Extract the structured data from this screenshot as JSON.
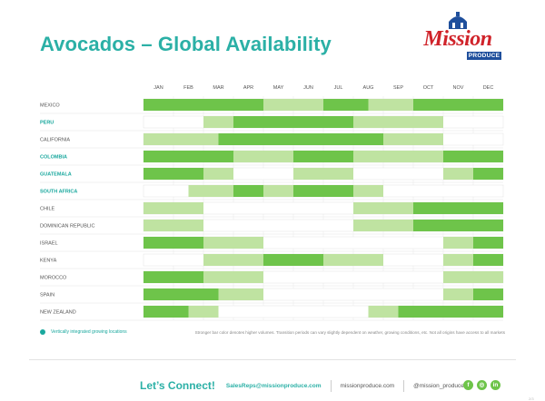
{
  "title": "Avocados – Global Availability",
  "logo": {
    "brand": "Mission",
    "sub": "PRODUCE"
  },
  "legend": {
    "label": "Vertically integrated growing locations"
  },
  "note": "Stronger bar color denotes higher volumes. Transition periods can vary slightly dependent on weather, growing conditions, etc. Not all origins have access to all markets",
  "footer": {
    "connect": "Let’s Connect!",
    "email": "SalesReps@missionproduce.com",
    "website": "missionproduce.com",
    "handle": "@mission_produce",
    "socials": [
      "f",
      "◎",
      "in"
    ]
  },
  "page_number": "2/3",
  "colors": {
    "teal": "#2bb0a6",
    "strong": "#6ec44a",
    "light": "#bfe3a1",
    "row_label": "#555555",
    "row_label_teal": "#1aa89e"
  },
  "chart_data": {
    "type": "table",
    "title": "Avocados – Global Availability",
    "months": [
      "JAN",
      "FEB",
      "MAR",
      "APR",
      "MAY",
      "JUN",
      "JUL",
      "AUG",
      "SEP",
      "OCT",
      "NOV",
      "DEC"
    ],
    "volume_scale": {
      "0": "none",
      "1": "lower volume (light)",
      "2": "higher volume (strong)"
    },
    "rows": [
      {
        "name": "MEXICO",
        "vertically_integrated": false,
        "segments": [
          [
            0,
            4,
            2
          ],
          [
            4,
            6,
            1
          ],
          [
            6,
            7.5,
            2
          ],
          [
            7.5,
            9,
            1
          ],
          [
            9,
            12,
            2
          ]
        ]
      },
      {
        "name": "PERU",
        "vertically_integrated": true,
        "segments": [
          [
            2,
            3,
            1
          ],
          [
            3,
            7,
            2
          ],
          [
            7,
            10,
            1
          ]
        ]
      },
      {
        "name": "CALIFORNIA",
        "vertically_integrated": false,
        "segments": [
          [
            0,
            2.5,
            1
          ],
          [
            2.5,
            8,
            2
          ],
          [
            8,
            10,
            1
          ]
        ]
      },
      {
        "name": "COLOMBIA",
        "vertically_integrated": true,
        "segments": [
          [
            0,
            3,
            2
          ],
          [
            3,
            5,
            1
          ],
          [
            5,
            7,
            2
          ],
          [
            7,
            10,
            1
          ],
          [
            10,
            12,
            2
          ]
        ]
      },
      {
        "name": "GUATEMALA",
        "vertically_integrated": true,
        "segments": [
          [
            0,
            2,
            2
          ],
          [
            2,
            3,
            1
          ],
          [
            5,
            7,
            1
          ],
          [
            10,
            11,
            1
          ],
          [
            11,
            12,
            2
          ]
        ]
      },
      {
        "name": "SOUTH AFRICA",
        "vertically_integrated": true,
        "segments": [
          [
            1.5,
            3,
            1
          ],
          [
            3,
            4,
            2
          ],
          [
            4,
            5,
            1
          ],
          [
            5,
            7,
            2
          ],
          [
            7,
            8,
            1
          ]
        ]
      },
      {
        "name": "CHILE",
        "vertically_integrated": false,
        "segments": [
          [
            0,
            2,
            1
          ],
          [
            7,
            9,
            1
          ],
          [
            9,
            12,
            2
          ]
        ]
      },
      {
        "name": "DOMINICAN REPUBLIC",
        "vertically_integrated": false,
        "segments": [
          [
            0,
            2,
            1
          ],
          [
            7,
            9,
            1
          ],
          [
            9,
            12,
            2
          ]
        ]
      },
      {
        "name": "ISRAEL",
        "vertically_integrated": false,
        "segments": [
          [
            0,
            2,
            2
          ],
          [
            2,
            4,
            1
          ],
          [
            10,
            11,
            1
          ],
          [
            11,
            12,
            2
          ]
        ]
      },
      {
        "name": "KENYA",
        "vertically_integrated": false,
        "segments": [
          [
            2,
            4,
            1
          ],
          [
            4,
            6,
            2
          ],
          [
            6,
            8,
            1
          ],
          [
            10,
            11,
            1
          ],
          [
            11,
            12,
            2
          ]
        ]
      },
      {
        "name": "MOROCCO",
        "vertically_integrated": false,
        "segments": [
          [
            0,
            2,
            2
          ],
          [
            2,
            4,
            1
          ],
          [
            10,
            12,
            1
          ]
        ]
      },
      {
        "name": "SPAIN",
        "vertically_integrated": false,
        "segments": [
          [
            0,
            2.5,
            2
          ],
          [
            2.5,
            4,
            1
          ],
          [
            10,
            11,
            1
          ],
          [
            11,
            12,
            2
          ]
        ]
      },
      {
        "name": "NEW ZEALAND",
        "vertically_integrated": false,
        "segments": [
          [
            0,
            1.5,
            2
          ],
          [
            1.5,
            2.5,
            1
          ],
          [
            7.5,
            8.5,
            1
          ],
          [
            8.5,
            12,
            2
          ]
        ]
      }
    ]
  }
}
